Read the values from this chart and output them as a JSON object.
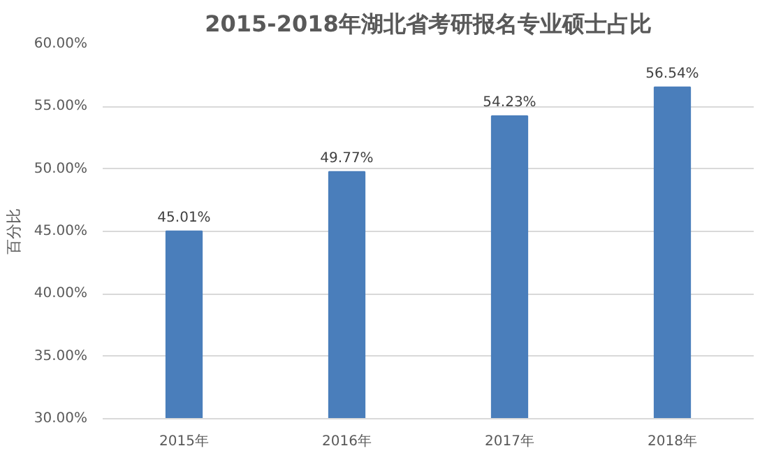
{
  "chart_data": {
    "type": "bar",
    "title": "2015-2018年湖北省考研报名专业硕士占比",
    "ylabel": "百分比",
    "categories": [
      "2015年",
      "2016年",
      "2017年",
      "2018年"
    ],
    "values": [
      45.01,
      49.77,
      54.23,
      56.54
    ],
    "value_labels": [
      "45.01%",
      "49.77%",
      "54.23%",
      "56.54%"
    ],
    "color": "#4a7ebb",
    "ylim": [
      30,
      60
    ],
    "yticks": [
      {
        "value": 30,
        "label": "30.00%"
      },
      {
        "value": 35,
        "label": "35.00%"
      },
      {
        "value": 40,
        "label": "40.00%"
      },
      {
        "value": 45,
        "label": "45.00%"
      },
      {
        "value": 50,
        "label": "50.00%"
      },
      {
        "value": 55,
        "label": "55.00%"
      },
      {
        "value": 60,
        "label": "60.00%"
      }
    ],
    "grid": "y"
  }
}
